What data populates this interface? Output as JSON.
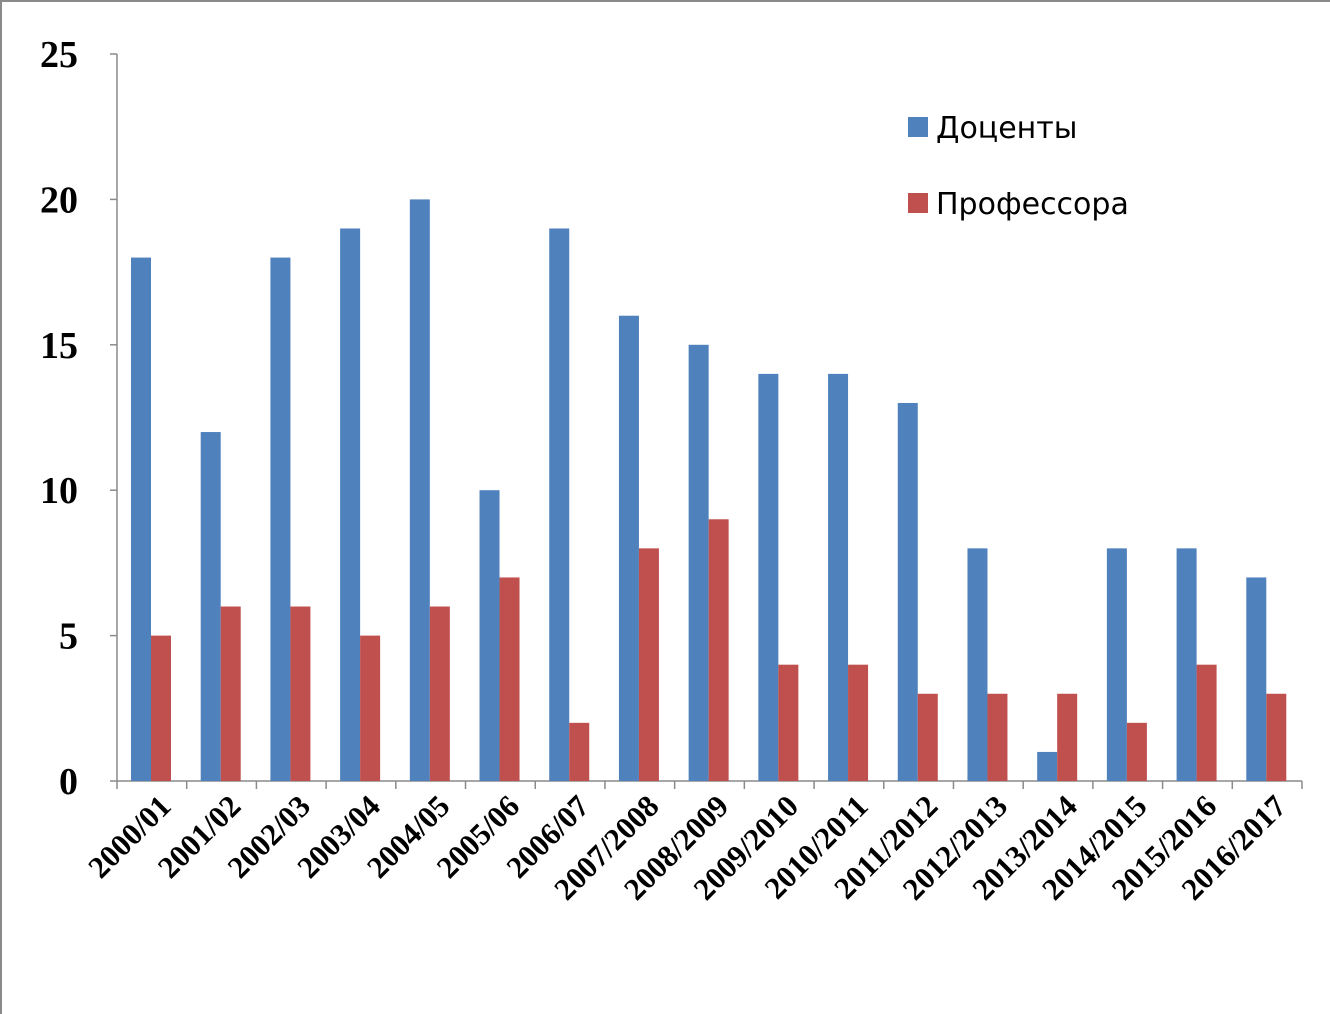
{
  "chart_data": {
    "type": "bar",
    "categories": [
      "2000/01",
      "2001/02",
      "2002/03",
      "2003/04",
      "2004/05",
      "2005/06",
      "2006/07",
      "2007/2008",
      "2008/2009",
      "2009/2010",
      "2010/2011",
      "2011/2012",
      "2012/2013",
      "2013/2014",
      "2014/2015",
      "2015/2016",
      "2016/2017"
    ],
    "series": [
      {
        "name": "Доценты",
        "color": "#4f81bd",
        "values": [
          18,
          12,
          18,
          19,
          20,
          10,
          19,
          16,
          15,
          14,
          14,
          13,
          8,
          1,
          8,
          8,
          7
        ]
      },
      {
        "name": "Профессора",
        "color": "#c0504d",
        "values": [
          5,
          6,
          6,
          5,
          6,
          7,
          2,
          8,
          9,
          4,
          4,
          3,
          3,
          3,
          2,
          4,
          3
        ]
      }
    ],
    "yticks": [
      "0",
      "5",
      "10",
      "15",
      "20",
      "25"
    ],
    "ylim": [
      0,
      25
    ],
    "grid": false,
    "legend_position": "top-right"
  }
}
